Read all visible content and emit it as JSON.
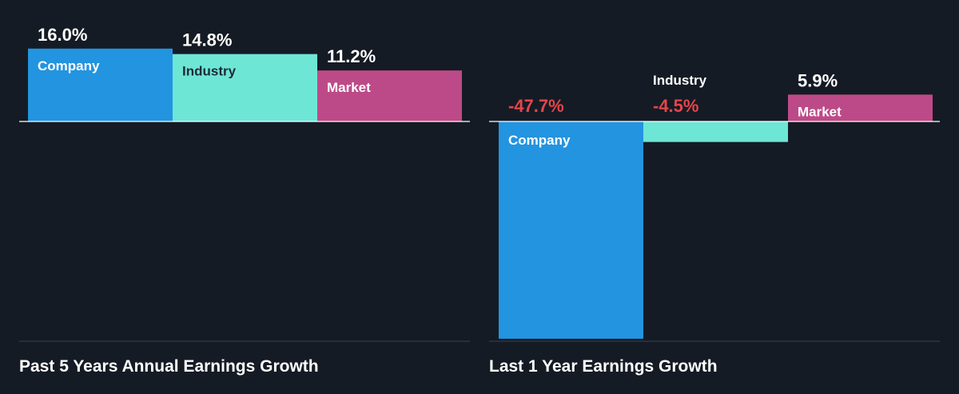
{
  "colors": {
    "background": "#151b24",
    "company": "#2394e0",
    "industry": "#6ee6d6",
    "market": "#bd4a88",
    "positive_label": "#ffffff",
    "negative_label": "#e5454a",
    "category_label_on_bar": "#ffffff",
    "category_label_on_light_bar": "#1e2a36",
    "axis_line": "#ffffff",
    "baseline": "#39404b"
  },
  "chart_data": [
    {
      "type": "bar",
      "title": "Past 5 Years Annual Earnings Growth",
      "categories": [
        "Company",
        "Industry",
        "Market"
      ],
      "values": [
        16.0,
        14.8,
        11.2
      ],
      "value_labels": [
        "16.0%",
        "14.8%",
        "11.2%"
      ],
      "unit": "%",
      "ylim": [
        -48.5,
        16.5
      ],
      "grid": false,
      "legend": "none"
    },
    {
      "type": "bar",
      "title": "Last 1 Year Earnings Growth",
      "categories": [
        "Company",
        "Industry",
        "Market"
      ],
      "values": [
        -47.7,
        -4.5,
        5.9
      ],
      "value_labels": [
        "-47.7%",
        "-4.5%",
        "5.9%"
      ],
      "unit": "%",
      "ylim": [
        -48.5,
        16.5
      ],
      "grid": false,
      "legend": "none"
    }
  ]
}
